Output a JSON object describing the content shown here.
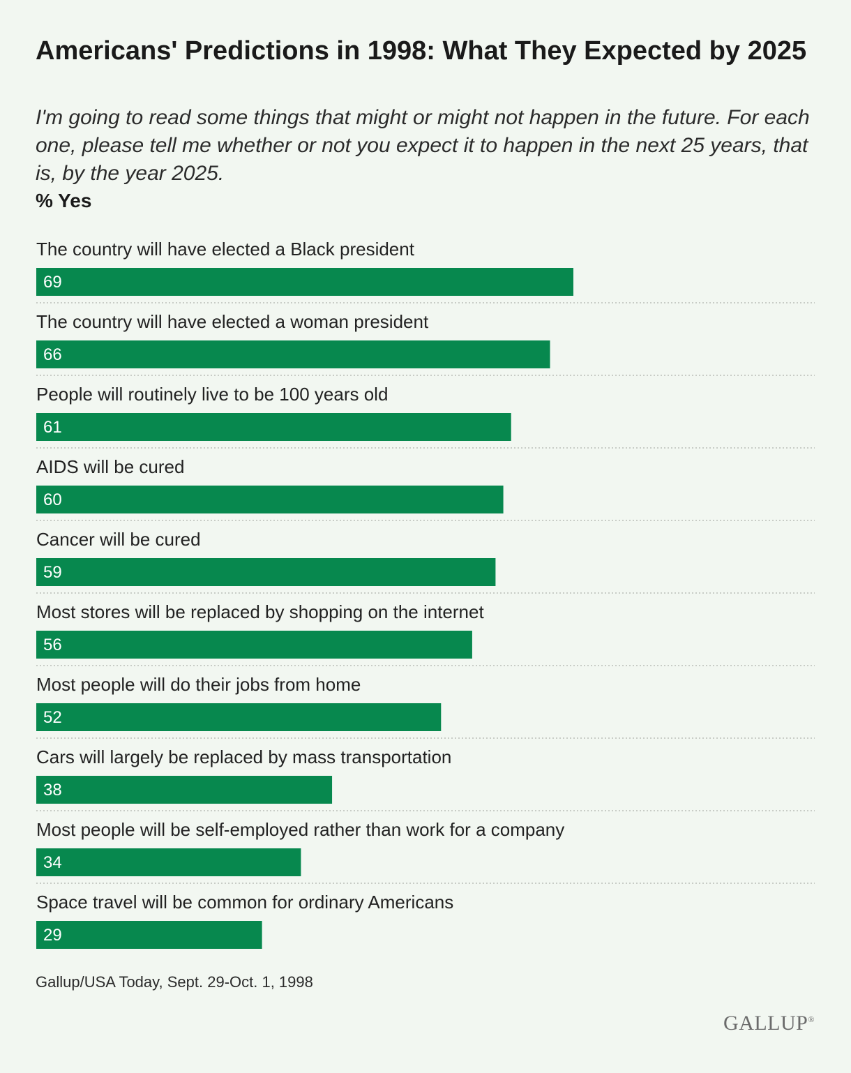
{
  "header": {
    "title": "Americans' Predictions in 1998: What They Expected by 2025",
    "subtitle": "I'm going to read some things that might or might not happen in the future. For each one, please tell me whether or not you expect it to happen in the next 25 years, that is, by the year 2025.",
    "measure": "% Yes"
  },
  "footer": {
    "source": "Gallup/USA Today, Sept. 29-Oct. 1, 1998",
    "logo_text": "GALLUP"
  },
  "colors": {
    "bar": "#07884e",
    "background": "#f2f7f1",
    "divider": "#b9bdb8"
  },
  "chart_data": {
    "type": "bar",
    "orientation": "horizontal",
    "categories": [
      "The country will have elected a Black president",
      "The country will have elected a woman president",
      "People will routinely live to be 100 years old",
      "AIDS will be cured",
      "Cancer will be cured",
      "Most stores will be replaced by shopping on the internet",
      "Most people will do their jobs from home",
      "Cars will largely be replaced by mass transportation",
      "Most people will be self-employed rather than work for a company",
      "Space travel will be common for ordinary Americans"
    ],
    "values": [
      69,
      66,
      61,
      60,
      59,
      56,
      52,
      38,
      34,
      29
    ],
    "xlim": [
      0,
      100
    ],
    "grid": false,
    "legend": "none"
  }
}
